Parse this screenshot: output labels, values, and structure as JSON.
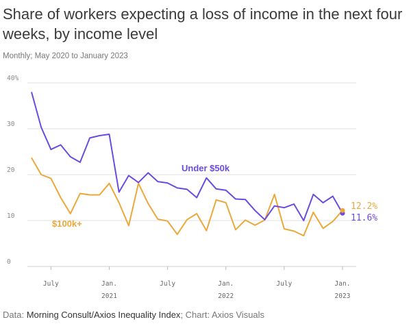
{
  "title": "Share of workers expecting a loss of income in the next four weeks, by income level",
  "subtitle": "Monthly; May 2020 to January 2023",
  "footer": {
    "data_prefix": "Data:",
    "data_source": "Morning Consult/Axios Inequality Index",
    "chart_prefix": "; Chart:",
    "chart_credit": "Axios Visuals"
  },
  "colors": {
    "under50k": "#6a4be0",
    "over100k": "#eba83a",
    "grid": "#e0e0e0"
  },
  "chart_data": {
    "type": "line",
    "title": "Share of workers expecting a loss of income in the next four weeks, by income level",
    "xlabel": "",
    "ylabel": "",
    "ylim": [
      0,
      40
    ],
    "yticks": [
      0,
      10,
      20,
      30,
      40
    ],
    "ytick_labels": [
      "0",
      "10",
      "20",
      "30",
      "40%"
    ],
    "x": [
      "2020-05",
      "2020-06",
      "2020-07",
      "2020-08",
      "2020-09",
      "2020-10",
      "2020-11",
      "2020-12",
      "2021-01",
      "2021-02",
      "2021-03",
      "2021-04",
      "2021-05",
      "2021-06",
      "2021-07",
      "2021-08",
      "2021-09",
      "2021-10",
      "2021-11",
      "2021-12",
      "2022-01",
      "2022-02",
      "2022-03",
      "2022-04",
      "2022-05",
      "2022-06",
      "2022-07",
      "2022-08",
      "2022-09",
      "2022-10",
      "2022-11",
      "2022-12",
      "2023-01"
    ],
    "xticks": [
      {
        "index": 2,
        "line1": "July",
        "line2": ""
      },
      {
        "index": 8,
        "line1": "Jan.",
        "line2": "2021"
      },
      {
        "index": 14,
        "line1": "July",
        "line2": ""
      },
      {
        "index": 20,
        "line1": "Jan.",
        "line2": "2022"
      },
      {
        "index": 26,
        "line1": "July",
        "line2": ""
      },
      {
        "index": 32,
        "line1": "Jan.",
        "line2": "2023"
      }
    ],
    "series": [
      {
        "name": "Under $50k",
        "values": [
          38.0,
          30.3,
          25.5,
          26.5,
          23.9,
          22.7,
          28.0,
          28.5,
          28.8,
          16.2,
          19.8,
          18.3,
          20.4,
          18.5,
          18.2,
          17.1,
          16.8,
          15.0,
          19.3,
          16.9,
          16.6,
          14.7,
          14.6,
          12.2,
          10.2,
          13.2,
          12.8,
          13.6,
          10.0,
          15.7,
          13.9,
          15.3,
          11.6
        ],
        "end_label": "11.6%"
      },
      {
        "name": "$100k+",
        "values": [
          23.7,
          20.0,
          19.2,
          15.0,
          11.5,
          15.9,
          15.6,
          15.6,
          18.1,
          13.9,
          8.9,
          18.1,
          13.7,
          10.3,
          9.9,
          7.0,
          10.2,
          11.5,
          7.8,
          14.5,
          13.9,
          8.0,
          10.1,
          9.0,
          10.1,
          15.7,
          8.2,
          7.7,
          6.7,
          11.8,
          8.3,
          9.8,
          12.2
        ],
        "end_label": "12.2%"
      }
    ]
  }
}
